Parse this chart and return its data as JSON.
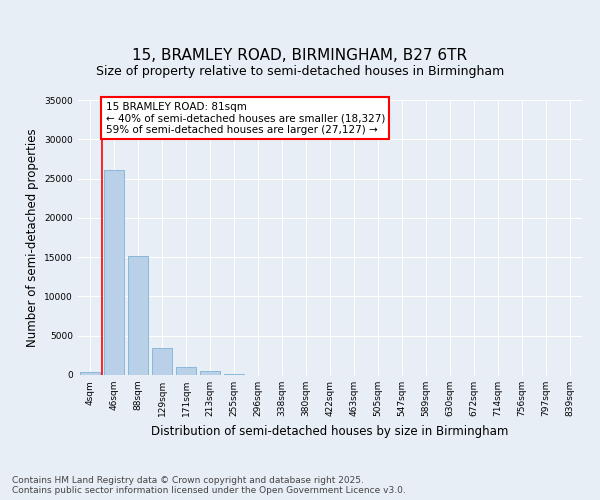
{
  "title_line1": "15, BRAMLEY ROAD, BIRMINGHAM, B27 6TR",
  "title_line2": "Size of property relative to semi-detached houses in Birmingham",
  "xlabel": "Distribution of semi-detached houses by size in Birmingham",
  "ylabel": "Number of semi-detached properties",
  "categories": [
    "4sqm",
    "46sqm",
    "88sqm",
    "129sqm",
    "171sqm",
    "213sqm",
    "255sqm",
    "296sqm",
    "338sqm",
    "380sqm",
    "422sqm",
    "463sqm",
    "505sqm",
    "547sqm",
    "589sqm",
    "630sqm",
    "672sqm",
    "714sqm",
    "756sqm",
    "797sqm",
    "839sqm"
  ],
  "values": [
    400,
    26100,
    15100,
    3400,
    1050,
    450,
    100,
    30,
    0,
    0,
    0,
    0,
    0,
    0,
    0,
    0,
    0,
    0,
    0,
    0,
    0
  ],
  "bar_color": "#b8d0e8",
  "bar_edge_color": "#6fa8d0",
  "vline_x": 0.5,
  "vline_color": "red",
  "annotation_text": "15 BRAMLEY ROAD: 81sqm\n← 40% of semi-detached houses are smaller (18,327)\n59% of semi-detached houses are larger (27,127) →",
  "annotation_box_color": "white",
  "annotation_box_edge_color": "red",
  "ylim": [
    0,
    35000
  ],
  "yticks": [
    0,
    5000,
    10000,
    15000,
    20000,
    25000,
    30000,
    35000
  ],
  "bg_color": "#e8eef5",
  "plot_bg_color": "#e8eef5",
  "grid_color": "white",
  "footer_text": "Contains HM Land Registry data © Crown copyright and database right 2025.\nContains public sector information licensed under the Open Government Licence v3.0.",
  "title_fontsize": 11,
  "subtitle_fontsize": 9,
  "axis_label_fontsize": 8.5,
  "tick_fontsize": 6.5,
  "annotation_fontsize": 7.5,
  "footer_fontsize": 6.5
}
